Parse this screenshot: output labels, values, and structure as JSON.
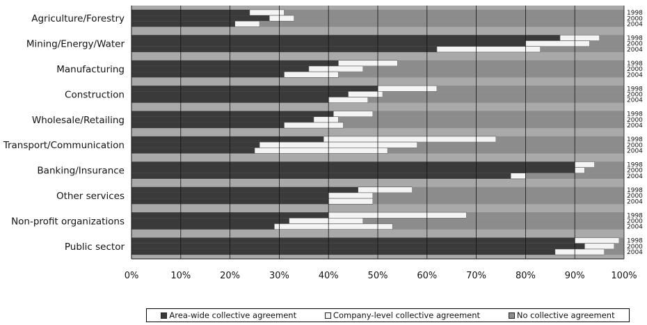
{
  "chart_data": {
    "type": "bar",
    "orientation": "horizontal",
    "stacked": true,
    "xlim": [
      0,
      100
    ],
    "xticks": [
      "0%",
      "10%",
      "20%",
      "30%",
      "40%",
      "50%",
      "60%",
      "70%",
      "80%",
      "90%",
      "100%"
    ],
    "grid": true,
    "legend_position": "bottom",
    "years": [
      "1998",
      "2000",
      "2004"
    ],
    "categories": [
      "Agriculture/Forestry",
      "Mining/Energy/Water",
      "Manufacturing",
      "Construction",
      "Wholesale/Retailing",
      "Transport/Communication",
      "Banking/Insurance",
      "Other services",
      "Non-profit organizations",
      "Public sector"
    ],
    "series": [
      {
        "name": "Area-wide collective agreement",
        "color": "#3a3a3a",
        "values": [
          [
            24,
            28,
            21
          ],
          [
            87,
            80,
            62
          ],
          [
            42,
            36,
            31
          ],
          [
            50,
            44,
            40
          ],
          [
            41,
            37,
            31
          ],
          [
            39,
            26,
            25
          ],
          [
            90,
            90,
            77
          ],
          [
            46,
            40,
            40
          ],
          [
            40,
            32,
            29
          ],
          [
            90,
            92,
            86
          ]
        ]
      },
      {
        "name": "Company-level collective agreement",
        "color": "#f4f4f4",
        "values": [
          [
            7,
            5,
            5
          ],
          [
            8,
            13,
            21
          ],
          [
            12,
            11,
            11
          ],
          [
            12,
            7,
            8
          ],
          [
            8,
            5,
            12
          ],
          [
            35,
            32,
            27
          ],
          [
            4,
            2,
            3
          ],
          [
            11,
            9,
            9
          ],
          [
            28,
            15,
            24
          ],
          [
            9,
            6,
            10
          ]
        ]
      },
      {
        "name": "No collective agreement",
        "color": "#8c8c8c",
        "values": [
          [
            69,
            67,
            74
          ],
          [
            5,
            7,
            17
          ],
          [
            46,
            53,
            58
          ],
          [
            38,
            49,
            52
          ],
          [
            51,
            58,
            57
          ],
          [
            26,
            42,
            48
          ],
          [
            6,
            8,
            20
          ],
          [
            43,
            51,
            51
          ],
          [
            32,
            53,
            47
          ],
          [
            1,
            2,
            4
          ]
        ]
      }
    ]
  }
}
